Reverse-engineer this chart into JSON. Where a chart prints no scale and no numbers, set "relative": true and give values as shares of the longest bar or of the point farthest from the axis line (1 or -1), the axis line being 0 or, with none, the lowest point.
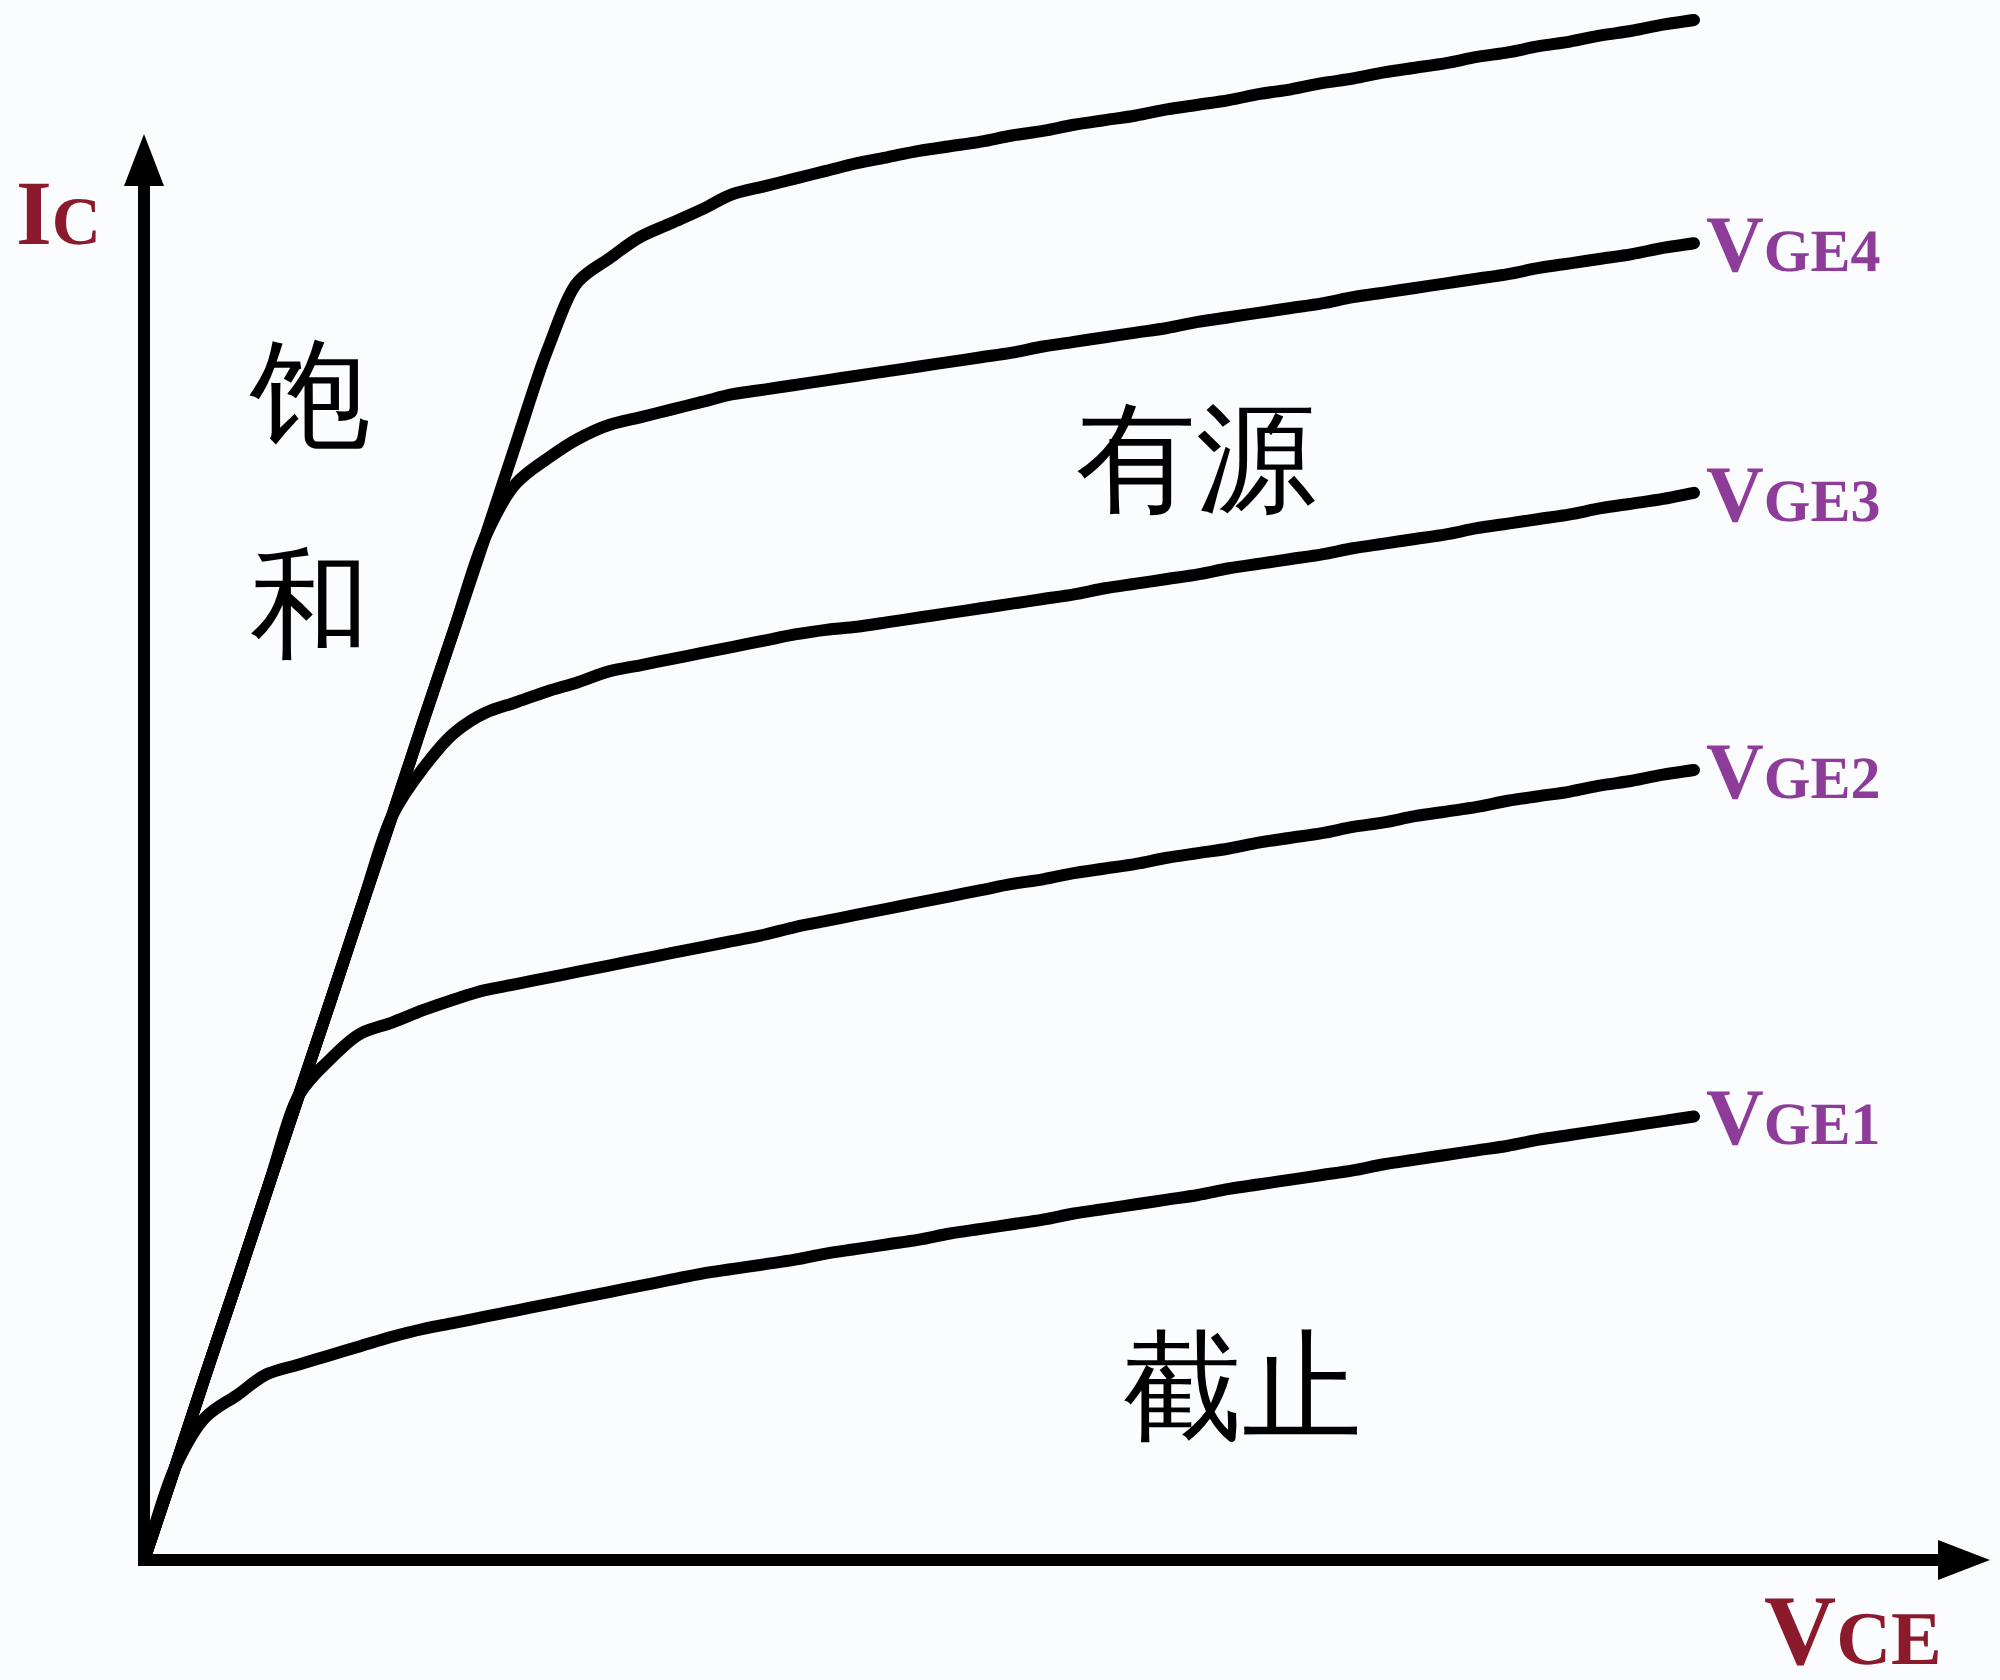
{
  "chart_data": {
    "type": "line",
    "relative": true,
    "xlabel": "VCE",
    "ylabel": "IC",
    "categories": [
      null,
      null,
      null,
      null,
      null,
      null,
      null,
      null,
      null,
      null,
      null,
      null,
      null,
      null,
      null,
      null,
      null,
      null,
      null,
      null,
      null,
      null,
      null,
      null,
      null,
      null,
      null,
      null,
      null,
      null,
      null,
      null,
      null,
      null,
      null,
      null,
      null,
      null,
      null,
      null,
      null,
      null,
      null,
      null,
      null,
      null,
      null,
      null,
      null,
      null,
      null
    ],
    "series": [
      {
        "color": "#000000",
        "values": [
          0,
          0.06,
          0.121,
          0.181,
          0.242,
          0.302,
          0.362,
          0.423,
          0.483,
          0.544,
          0.604,
          0.664,
          0.725,
          0.785,
          0.83,
          0.845,
          0.859,
          0.868,
          0.877,
          0.887,
          0.892,
          0.897,
          0.902,
          0.907,
          0.911,
          0.915,
          0.918,
          0.921,
          0.925,
          0.928,
          0.932,
          0.935,
          0.938,
          0.942,
          0.945,
          0.948,
          0.952,
          0.955,
          0.959,
          0.962,
          0.966,
          0.969,
          0.972,
          0.976,
          0.979,
          0.983,
          0.986,
          0.99,
          0.993,
          0.997,
          1.0
        ]
      },
      {
        "name": "VGE4",
        "color": "#000000",
        "values": [
          0,
          0.06,
          0.121,
          0.181,
          0.242,
          0.302,
          0.362,
          0.423,
          0.483,
          0.544,
          0.604,
          0.664,
          0.699,
          0.715,
          0.728,
          0.737,
          0.742,
          0.747,
          0.752,
          0.757,
          0.76,
          0.763,
          0.766,
          0.769,
          0.772,
          0.775,
          0.778,
          0.781,
          0.784,
          0.788,
          0.791,
          0.794,
          0.797,
          0.8,
          0.804,
          0.807,
          0.81,
          0.813,
          0.816,
          0.82,
          0.823,
          0.826,
          0.829,
          0.832,
          0.835,
          0.839,
          0.842,
          0.845,
          0.848,
          0.852,
          0.855
        ]
      },
      {
        "name": "VGE3",
        "color": "#000000",
        "values": [
          0,
          0.06,
          0.121,
          0.181,
          0.242,
          0.302,
          0.362,
          0.423,
          0.483,
          0.514,
          0.537,
          0.55,
          0.557,
          0.564,
          0.57,
          0.577,
          0.581,
          0.585,
          0.589,
          0.593,
          0.597,
          0.601,
          0.604,
          0.606,
          0.609,
          0.612,
          0.615,
          0.618,
          0.621,
          0.624,
          0.627,
          0.631,
          0.634,
          0.637,
          0.64,
          0.644,
          0.647,
          0.65,
          0.653,
          0.657,
          0.66,
          0.663,
          0.666,
          0.67,
          0.673,
          0.676,
          0.679,
          0.683,
          0.686,
          0.689,
          0.693
        ]
      },
      {
        "name": "VGE2",
        "color": "#000000",
        "values": [
          0,
          0.06,
          0.121,
          0.181,
          0.242,
          0.302,
          0.325,
          0.342,
          0.349,
          0.357,
          0.364,
          0.37,
          0.374,
          0.378,
          0.382,
          0.386,
          0.39,
          0.394,
          0.398,
          0.402,
          0.406,
          0.411,
          0.415,
          0.419,
          0.423,
          0.427,
          0.431,
          0.435,
          0.439,
          0.442,
          0.446,
          0.449,
          0.452,
          0.456,
          0.459,
          0.462,
          0.466,
          0.469,
          0.472,
          0.476,
          0.479,
          0.483,
          0.486,
          0.489,
          0.493,
          0.496,
          0.499,
          0.503,
          0.506,
          0.51,
          0.513
        ]
      },
      {
        "name": "VGE1",
        "color": "#000000",
        "values": [
          0,
          0.06,
          0.093,
          0.107,
          0.121,
          0.127,
          0.133,
          0.139,
          0.145,
          0.15,
          0.154,
          0.158,
          0.162,
          0.166,
          0.17,
          0.174,
          0.178,
          0.182,
          0.186,
          0.189,
          0.192,
          0.195,
          0.199,
          0.202,
          0.205,
          0.208,
          0.212,
          0.215,
          0.218,
          0.221,
          0.225,
          0.228,
          0.231,
          0.234,
          0.237,
          0.241,
          0.244,
          0.247,
          0.25,
          0.253,
          0.257,
          0.26,
          0.263,
          0.266,
          0.269,
          0.273,
          0.276,
          0.279,
          0.282,
          0.285,
          0.288
        ]
      }
    ],
    "annotations": [
      "饱和",
      "有源",
      "截止"
    ]
  }
}
